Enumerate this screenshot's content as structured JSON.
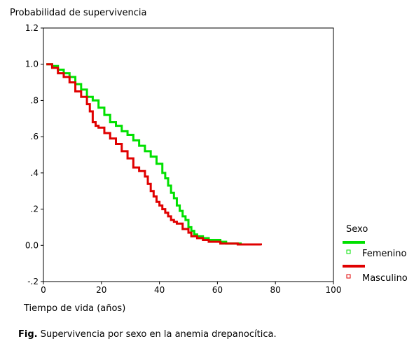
{
  "chart_data": {
    "type": "line",
    "step": true,
    "ylabel": "Probabilidad de supervivencia",
    "xlabel": "Tiempo de vida (años)",
    "xlim": [
      0,
      100
    ],
    "ylim": [
      -0.2,
      1.2
    ],
    "xticks": [
      {
        "value": 0,
        "label": "0"
      },
      {
        "value": 20,
        "label": "20"
      },
      {
        "value": 40,
        "label": "40"
      },
      {
        "value": 60,
        "label": "60"
      },
      {
        "value": 80,
        "label": "80"
      },
      {
        "value": 100,
        "label": "100"
      }
    ],
    "yticks": [
      {
        "value": 1.2,
        "label": "1.2"
      },
      {
        "value": 1.0,
        "label": "1.0"
      },
      {
        "value": 0.8,
        "label": ".8"
      },
      {
        "value": 0.6,
        "label": ".6"
      },
      {
        "value": 0.4,
        "label": ".4"
      },
      {
        "value": 0.2,
        "label": ".2"
      },
      {
        "value": 0.0,
        "label": "0.0"
      },
      {
        "value": -0.2,
        "label": "-.2"
      }
    ],
    "grid": false,
    "legend": {
      "title": "Sexo",
      "placement": "right"
    },
    "series": [
      {
        "name": "Femenino",
        "color": "#00e000",
        "x": [
          1,
          3,
          5,
          7,
          9,
          11,
          13,
          15,
          17,
          19,
          21,
          23,
          25,
          27,
          29,
          31,
          33,
          35,
          37,
          39,
          41,
          42,
          43,
          44,
          45,
          46,
          47,
          48,
          49,
          50,
          51,
          52,
          53,
          55,
          57,
          59,
          61,
          63,
          65,
          68
        ],
        "y": [
          1.0,
          0.99,
          0.97,
          0.95,
          0.93,
          0.89,
          0.86,
          0.82,
          0.8,
          0.76,
          0.72,
          0.68,
          0.66,
          0.63,
          0.61,
          0.58,
          0.55,
          0.52,
          0.49,
          0.45,
          0.4,
          0.37,
          0.33,
          0.29,
          0.26,
          0.22,
          0.19,
          0.16,
          0.14,
          0.1,
          0.08,
          0.06,
          0.05,
          0.04,
          0.03,
          0.03,
          0.02,
          0.01,
          0.01,
          0.0
        ]
      },
      {
        "name": "Masculino",
        "color": "#e00000",
        "x": [
          1,
          3,
          5,
          7,
          9,
          11,
          13,
          15,
          16,
          17,
          18,
          19,
          21,
          23,
          25,
          27,
          29,
          31,
          33,
          35,
          36,
          37,
          38,
          39,
          40,
          41,
          42,
          43,
          44,
          45,
          46,
          48,
          50,
          51,
          53,
          55,
          57,
          61,
          67,
          75
        ],
        "y": [
          1.0,
          0.98,
          0.95,
          0.93,
          0.9,
          0.85,
          0.82,
          0.78,
          0.74,
          0.68,
          0.66,
          0.65,
          0.62,
          0.59,
          0.56,
          0.52,
          0.48,
          0.43,
          0.41,
          0.38,
          0.34,
          0.3,
          0.27,
          0.24,
          0.22,
          0.2,
          0.18,
          0.16,
          0.14,
          0.13,
          0.12,
          0.09,
          0.07,
          0.05,
          0.04,
          0.03,
          0.02,
          0.01,
          0.005,
          0.0
        ]
      }
    ]
  },
  "caption": {
    "label": "Fig.",
    "text": " Supervivencia por sexo en la anemia drepanocítica."
  }
}
